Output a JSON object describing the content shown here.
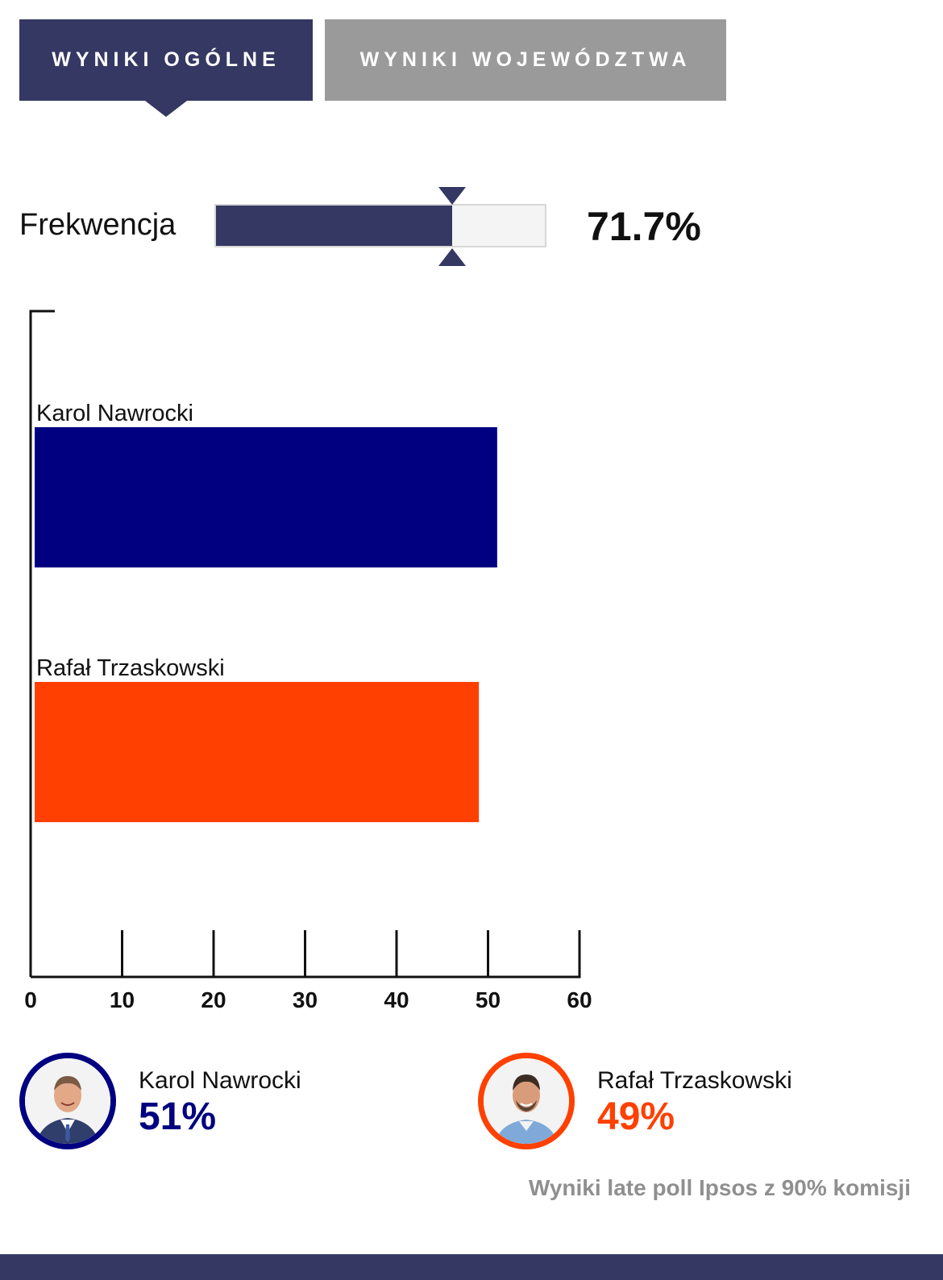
{
  "tabs": [
    {
      "label": "WYNIKI OGÓLNE",
      "active": true
    },
    {
      "label": "WYNIKI WOJEWÓDZTWA",
      "active": false
    }
  ],
  "colors": {
    "accent": "#343862",
    "inactive_tab": "#9a9a9a",
    "candidate_1": "#000080",
    "candidate_2": "#ff4000",
    "note": "#8f8f8f"
  },
  "turnout": {
    "label": "Frekwencja",
    "value_text": "71.7%",
    "fraction": 0.717
  },
  "chart_data": {
    "type": "bar",
    "orientation": "horizontal",
    "categories": [
      "Karol Nawrocki",
      "Rafał Trzaskowski"
    ],
    "values": [
      51,
      49
    ],
    "colors": [
      "#000080",
      "#ff4000"
    ],
    "xlim": [
      0,
      60
    ],
    "xticks": [
      0,
      10,
      20,
      30,
      40,
      50,
      60
    ],
    "title": "",
    "xlabel": "",
    "ylabel": "",
    "grid": false
  },
  "legend": [
    {
      "name": "Karol Nawrocki",
      "percent": "51%",
      "color": "#000080",
      "avatar_icon": "candidate-portrait"
    },
    {
      "name": "Rafał Trzaskowski",
      "percent": "49%",
      "color": "#ff4000",
      "avatar_icon": "candidate-portrait"
    }
  ],
  "note": "Wyniki late poll Ipsos z 90% komisji"
}
